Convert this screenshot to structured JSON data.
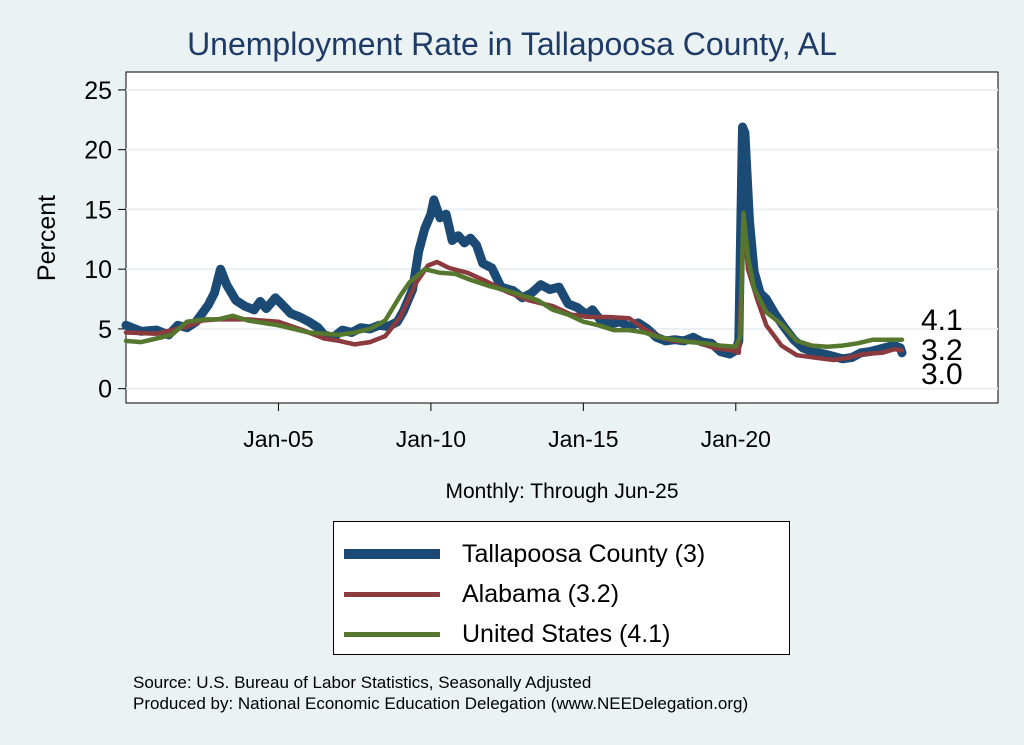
{
  "chart_data": {
    "type": "line",
    "title": "Unemployment Rate in Tallapoosa  County, AL",
    "xlabel": "Monthly: Through Jun-25",
    "ylabel": "Percent",
    "xlim": [
      2000.0,
      2028.6
    ],
    "ylim": [
      -1.2,
      26.5
    ],
    "yticks": [
      0,
      5,
      10,
      15,
      20,
      25
    ],
    "xticks": [
      {
        "x": 2005.0,
        "label": "Jan-05"
      },
      {
        "x": 2010.0,
        "label": "Jan-10"
      },
      {
        "x": 2015.0,
        "label": "Jan-15"
      },
      {
        "x": 2020.0,
        "label": "Jan-20"
      }
    ],
    "grid": true,
    "series": [
      {
        "name": "Tallapoosa  County",
        "legend": "Tallapoosa  County (3)",
        "color": "#1b4a74",
        "last_label": "3.0",
        "points": [
          [
            2000.0,
            5.3
          ],
          [
            2000.5,
            4.8
          ],
          [
            2001.0,
            4.9
          ],
          [
            2001.4,
            4.5
          ],
          [
            2001.7,
            5.3
          ],
          [
            2002.0,
            5.1
          ],
          [
            2002.3,
            5.6
          ],
          [
            2002.7,
            7.0
          ],
          [
            2002.9,
            8.0
          ],
          [
            2003.1,
            10.0
          ],
          [
            2003.3,
            8.7
          ],
          [
            2003.6,
            7.4
          ],
          [
            2003.9,
            6.9
          ],
          [
            2004.2,
            6.6
          ],
          [
            2004.4,
            7.3
          ],
          [
            2004.6,
            6.7
          ],
          [
            2004.9,
            7.6
          ],
          [
            2005.1,
            7.1
          ],
          [
            2005.4,
            6.3
          ],
          [
            2005.7,
            6.0
          ],
          [
            2006.0,
            5.6
          ],
          [
            2006.3,
            5.1
          ],
          [
            2006.5,
            4.5
          ],
          [
            2006.8,
            4.3
          ],
          [
            2007.1,
            4.9
          ],
          [
            2007.4,
            4.7
          ],
          [
            2007.7,
            5.1
          ],
          [
            2008.0,
            5.0
          ],
          [
            2008.3,
            5.3
          ],
          [
            2008.6,
            5.2
          ],
          [
            2008.9,
            5.6
          ],
          [
            2009.1,
            6.5
          ],
          [
            2009.4,
            8.3
          ],
          [
            2009.6,
            11.5
          ],
          [
            2009.8,
            13.4
          ],
          [
            2010.0,
            14.6
          ],
          [
            2010.1,
            15.8
          ],
          [
            2010.3,
            14.3
          ],
          [
            2010.5,
            14.6
          ],
          [
            2010.7,
            12.4
          ],
          [
            2010.9,
            12.8
          ],
          [
            2011.1,
            12.2
          ],
          [
            2011.3,
            12.6
          ],
          [
            2011.5,
            12.0
          ],
          [
            2011.7,
            10.5
          ],
          [
            2012.0,
            10.1
          ],
          [
            2012.3,
            8.5
          ],
          [
            2012.7,
            8.2
          ],
          [
            2013.0,
            7.6
          ],
          [
            2013.3,
            8.0
          ],
          [
            2013.6,
            8.7
          ],
          [
            2013.9,
            8.3
          ],
          [
            2014.2,
            8.5
          ],
          [
            2014.5,
            7.1
          ],
          [
            2014.8,
            6.8
          ],
          [
            2015.1,
            6.2
          ],
          [
            2015.3,
            6.6
          ],
          [
            2015.6,
            5.6
          ],
          [
            2015.9,
            5.4
          ],
          [
            2016.2,
            5.6
          ],
          [
            2016.5,
            5.2
          ],
          [
            2016.8,
            5.5
          ],
          [
            2017.1,
            5.0
          ],
          [
            2017.4,
            4.3
          ],
          [
            2017.7,
            4.0
          ],
          [
            2018.0,
            4.1
          ],
          [
            2018.3,
            4.0
          ],
          [
            2018.6,
            4.3
          ],
          [
            2018.9,
            3.9
          ],
          [
            2019.2,
            3.8
          ],
          [
            2019.5,
            3.1
          ],
          [
            2019.8,
            2.9
          ],
          [
            2020.0,
            3.2
          ],
          [
            2020.1,
            4.0
          ],
          [
            2020.22,
            21.9
          ],
          [
            2020.3,
            21.4
          ],
          [
            2020.45,
            14.0
          ],
          [
            2020.6,
            9.8
          ],
          [
            2020.8,
            8.0
          ],
          [
            2021.0,
            7.5
          ],
          [
            2021.3,
            6.2
          ],
          [
            2021.6,
            5.1
          ],
          [
            2021.9,
            4.1
          ],
          [
            2022.2,
            3.4
          ],
          [
            2022.5,
            3.1
          ],
          [
            2022.9,
            2.9
          ],
          [
            2023.2,
            2.7
          ],
          [
            2023.5,
            2.5
          ],
          [
            2023.8,
            2.6
          ],
          [
            2024.1,
            3.0
          ],
          [
            2024.4,
            3.1
          ],
          [
            2024.7,
            3.3
          ],
          [
            2025.0,
            3.5
          ],
          [
            2025.2,
            3.6
          ],
          [
            2025.4,
            3.4
          ],
          [
            2025.45,
            3.0
          ]
        ]
      },
      {
        "name": "Alabama",
        "legend": "Alabama (3.2)",
        "color": "#8b3a3e",
        "last_label": "3.2",
        "points": [
          [
            2000.0,
            4.7
          ],
          [
            2001.0,
            4.6
          ],
          [
            2002.0,
            5.2
          ],
          [
            2002.5,
            5.7
          ],
          [
            2003.0,
            5.8
          ],
          [
            2004.0,
            5.8
          ],
          [
            2005.0,
            5.6
          ],
          [
            2005.8,
            4.9
          ],
          [
            2006.5,
            4.2
          ],
          [
            2007.0,
            4.0
          ],
          [
            2007.5,
            3.7
          ],
          [
            2008.0,
            3.9
          ],
          [
            2008.5,
            4.4
          ],
          [
            2009.0,
            6.0
          ],
          [
            2009.5,
            8.8
          ],
          [
            2009.9,
            10.3
          ],
          [
            2010.2,
            10.6
          ],
          [
            2010.6,
            10.1
          ],
          [
            2011.2,
            9.7
          ],
          [
            2011.8,
            9.0
          ],
          [
            2012.5,
            8.1
          ],
          [
            2013.2,
            7.4
          ],
          [
            2014.0,
            6.9
          ],
          [
            2014.6,
            6.2
          ],
          [
            2015.2,
            6.0
          ],
          [
            2015.8,
            6.0
          ],
          [
            2016.5,
            5.9
          ],
          [
            2017.0,
            5.0
          ],
          [
            2017.5,
            4.3
          ],
          [
            2018.0,
            4.0
          ],
          [
            2018.7,
            3.9
          ],
          [
            2019.3,
            3.4
          ],
          [
            2019.9,
            3.2
          ],
          [
            2020.1,
            3.0
          ],
          [
            2020.27,
            14.2
          ],
          [
            2020.4,
            10.0
          ],
          [
            2020.7,
            7.5
          ],
          [
            2021.0,
            5.3
          ],
          [
            2021.5,
            3.6
          ],
          [
            2022.0,
            2.8
          ],
          [
            2022.6,
            2.6
          ],
          [
            2023.2,
            2.4
          ],
          [
            2023.7,
            2.6
          ],
          [
            2024.2,
            2.9
          ],
          [
            2024.8,
            3.0
          ],
          [
            2025.2,
            3.3
          ],
          [
            2025.45,
            3.2
          ]
        ]
      },
      {
        "name": "United States",
        "legend": "United States (4.1)",
        "color": "#56772e",
        "last_label": "4.1",
        "points": [
          [
            2000.0,
            4.0
          ],
          [
            2000.5,
            3.9
          ],
          [
            2001.0,
            4.2
          ],
          [
            2001.5,
            4.5
          ],
          [
            2002.0,
            5.6
          ],
          [
            2002.6,
            5.8
          ],
          [
            2003.0,
            5.8
          ],
          [
            2003.5,
            6.1
          ],
          [
            2004.0,
            5.7
          ],
          [
            2004.5,
            5.5
          ],
          [
            2005.0,
            5.3
          ],
          [
            2005.5,
            5.0
          ],
          [
            2006.0,
            4.7
          ],
          [
            2006.5,
            4.6
          ],
          [
            2007.0,
            4.5
          ],
          [
            2007.5,
            4.7
          ],
          [
            2008.0,
            5.0
          ],
          [
            2008.5,
            5.7
          ],
          [
            2009.0,
            7.8
          ],
          [
            2009.3,
            8.9
          ],
          [
            2009.8,
            10.0
          ],
          [
            2010.3,
            9.7
          ],
          [
            2010.8,
            9.6
          ],
          [
            2011.3,
            9.1
          ],
          [
            2011.9,
            8.6
          ],
          [
            2012.5,
            8.2
          ],
          [
            2013.0,
            7.8
          ],
          [
            2013.5,
            7.4
          ],
          [
            2014.0,
            6.6
          ],
          [
            2014.5,
            6.2
          ],
          [
            2015.0,
            5.6
          ],
          [
            2015.5,
            5.3
          ],
          [
            2016.0,
            4.9
          ],
          [
            2016.5,
            4.9
          ],
          [
            2017.0,
            4.7
          ],
          [
            2017.5,
            4.3
          ],
          [
            2018.0,
            4.1
          ],
          [
            2018.5,
            3.9
          ],
          [
            2019.0,
            3.8
          ],
          [
            2019.5,
            3.6
          ],
          [
            2020.0,
            3.5
          ],
          [
            2020.15,
            4.4
          ],
          [
            2020.25,
            14.7
          ],
          [
            2020.4,
            11.0
          ],
          [
            2020.6,
            8.4
          ],
          [
            2021.0,
            6.4
          ],
          [
            2021.5,
            5.4
          ],
          [
            2022.0,
            4.0
          ],
          [
            2022.5,
            3.6
          ],
          [
            2023.0,
            3.5
          ],
          [
            2023.5,
            3.6
          ],
          [
            2024.0,
            3.8
          ],
          [
            2024.5,
            4.1
          ],
          [
            2025.0,
            4.1
          ],
          [
            2025.45,
            4.1
          ]
        ]
      }
    ]
  },
  "source_line": "Source: U.S. Bureau of Labor Statistics, Seasonally Adjusted",
  "producer_line": "Produced by: National Economic Education Delegation (www.NEEDelegation.org)"
}
